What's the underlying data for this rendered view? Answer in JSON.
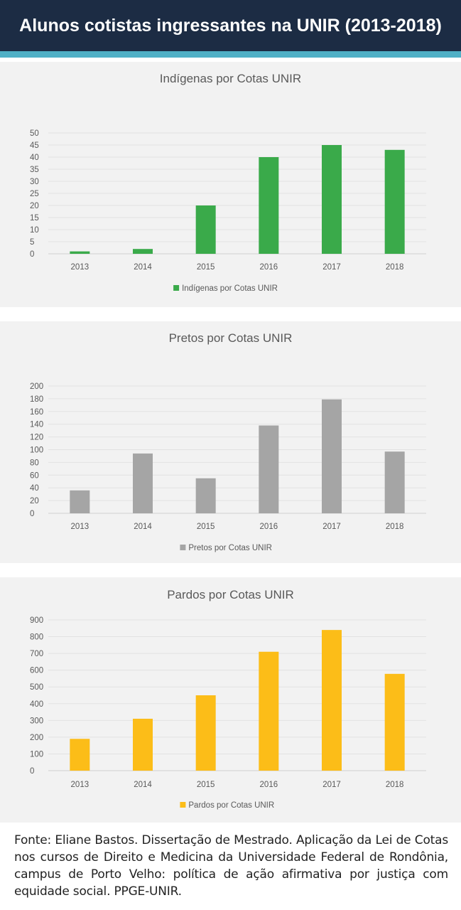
{
  "page": {
    "title": "Alunos cotistas ingressantes na UNIR (2013-2018)",
    "source": "Fonte: Eliane Bastos. Dissertação de Mestrado. Aplicação da Lei de Cotas nos cursos de Direito e Medicina da Universidade Federal de Rondônia, campus de Porto Velho: política de ação afirmativa por justiça com equidade social. PPGE-UNIR."
  },
  "chart_data": [
    {
      "type": "bar",
      "title": "Indígenas por Cotas UNIR",
      "categories": [
        "2013",
        "2014",
        "2015",
        "2016",
        "2017",
        "2018"
      ],
      "series": [
        {
          "name": "Indígenas por Cotas UNIR",
          "values": [
            1,
            2,
            20,
            40,
            45,
            43
          ]
        }
      ],
      "ylim": [
        0,
        50
      ],
      "yticks": [
        0,
        5,
        10,
        15,
        20,
        25,
        30,
        35,
        40,
        45,
        50
      ],
      "color": "#3aaa4a",
      "grid": true,
      "legend": "bottom"
    },
    {
      "type": "bar",
      "title": "Pretos por Cotas UNIR",
      "categories": [
        "2013",
        "2014",
        "2015",
        "2016",
        "2017",
        "2018"
      ],
      "series": [
        {
          "name": "Pretos por Cotas UNIR",
          "values": [
            36,
            94,
            55,
            138,
            179,
            97
          ]
        }
      ],
      "ylim": [
        0,
        200
      ],
      "yticks": [
        0,
        20,
        40,
        60,
        80,
        100,
        120,
        140,
        160,
        180,
        200
      ],
      "color": "#a5a5a5",
      "grid": true,
      "legend": "bottom"
    },
    {
      "type": "bar",
      "title": "Pardos por Cotas UNIR",
      "categories": [
        "2013",
        "2014",
        "2015",
        "2016",
        "2017",
        "2018"
      ],
      "series": [
        {
          "name": "Pardos por Cotas UNIR",
          "values": [
            190,
            310,
            450,
            710,
            840,
            578
          ]
        }
      ],
      "ylim": [
        0,
        900
      ],
      "yticks": [
        0,
        100,
        200,
        300,
        400,
        500,
        600,
        700,
        800,
        900
      ],
      "color": "#fcbd18",
      "grid": true,
      "legend": "bottom"
    }
  ]
}
